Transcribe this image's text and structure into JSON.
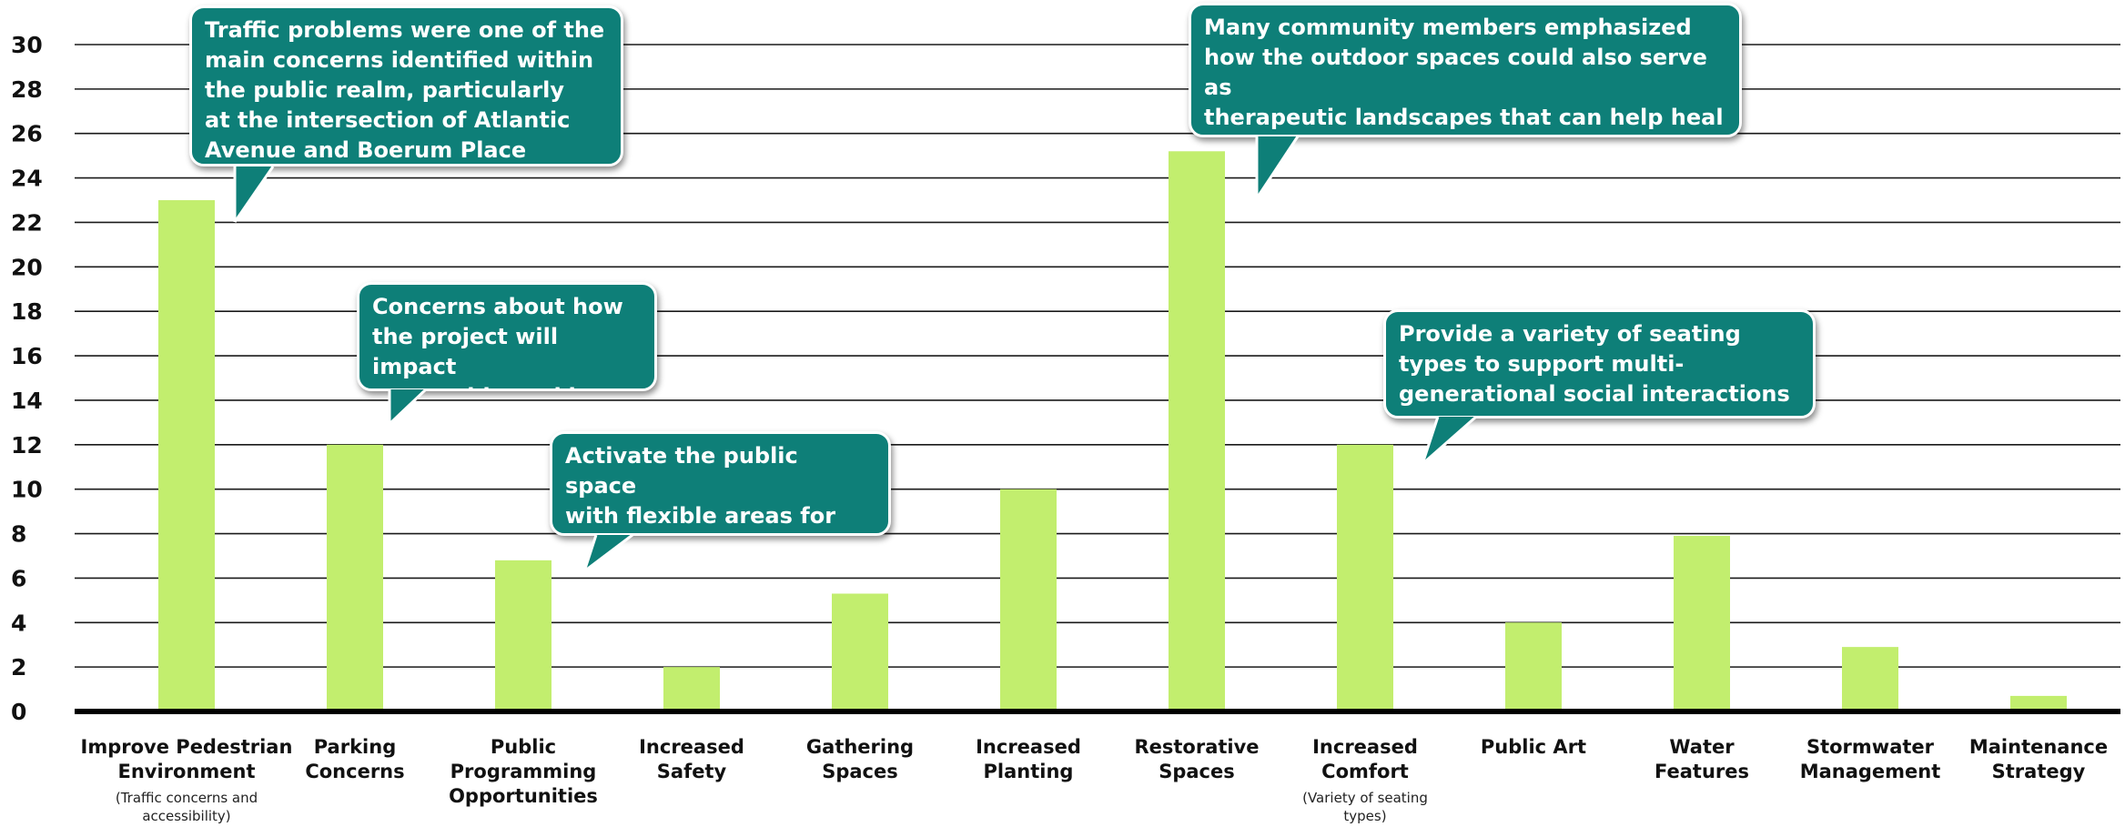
{
  "chart_data": {
    "type": "bar",
    "categories": [
      {
        "label": [
          "Improve Pedestrian",
          "Environment"
        ],
        "note": [
          "(Traffic concerns and",
          "accessibility)"
        ]
      },
      {
        "label": [
          "Parking",
          "Concerns"
        ],
        "note": []
      },
      {
        "label": [
          "Public",
          "Programming",
          "Opportunities"
        ],
        "note": []
      },
      {
        "label": [
          "Increased",
          "Safety"
        ],
        "note": []
      },
      {
        "label": [
          "Gathering",
          "Spaces"
        ],
        "note": []
      },
      {
        "label": [
          "Increased",
          "Planting"
        ],
        "note": []
      },
      {
        "label": [
          "Restorative",
          "Spaces"
        ],
        "note": []
      },
      {
        "label": [
          "Increased",
          "Comfort"
        ],
        "note": [
          "(Variety of seating",
          "types)"
        ]
      },
      {
        "label": [
          "Public Art"
        ],
        "note": []
      },
      {
        "label": [
          "Water",
          "Features"
        ],
        "note": []
      },
      {
        "label": [
          "Stormwater",
          "Management"
        ],
        "note": []
      },
      {
        "label": [
          "Maintenance",
          "Strategy"
        ],
        "note": []
      }
    ],
    "values": [
      23,
      12,
      6.8,
      2,
      5.3,
      10,
      25.2,
      12,
      4,
      7.9,
      2.9,
      0.7
    ],
    "ylim": [
      0,
      30
    ],
    "yticks": [
      0,
      2,
      4,
      6,
      8,
      10,
      12,
      14,
      16,
      18,
      20,
      22,
      24,
      26,
      28,
      30
    ],
    "grid": true,
    "bar_color": "#c2ee6e",
    "annotations": [
      {
        "text": "Traffic problems were one of the\nmain concerns identified within\nthe public realm, particularly\nat the intersection of Atlantic\nAvenue and Boerum Place",
        "category_index": 0
      },
      {
        "text": "Concerns about how\nthe project will impact\nstreet side  parking",
        "category_index": 1
      },
      {
        "text": "Activate the public space\nwith flexible areas for\nprogram and amenities",
        "category_index": 2
      },
      {
        "text": "Many community members emphasized\nhow the outdoor spaces could also serve as\ntherapeutic landscapes that can help heal\nvisitors, staff, and the people in custody",
        "category_index": 6
      },
      {
        "text": "Provide a variety of seating\ntypes to support multi-\ngenerational social interactions",
        "category_index": 7
      }
    ],
    "callout_color": "#0e7f78"
  }
}
